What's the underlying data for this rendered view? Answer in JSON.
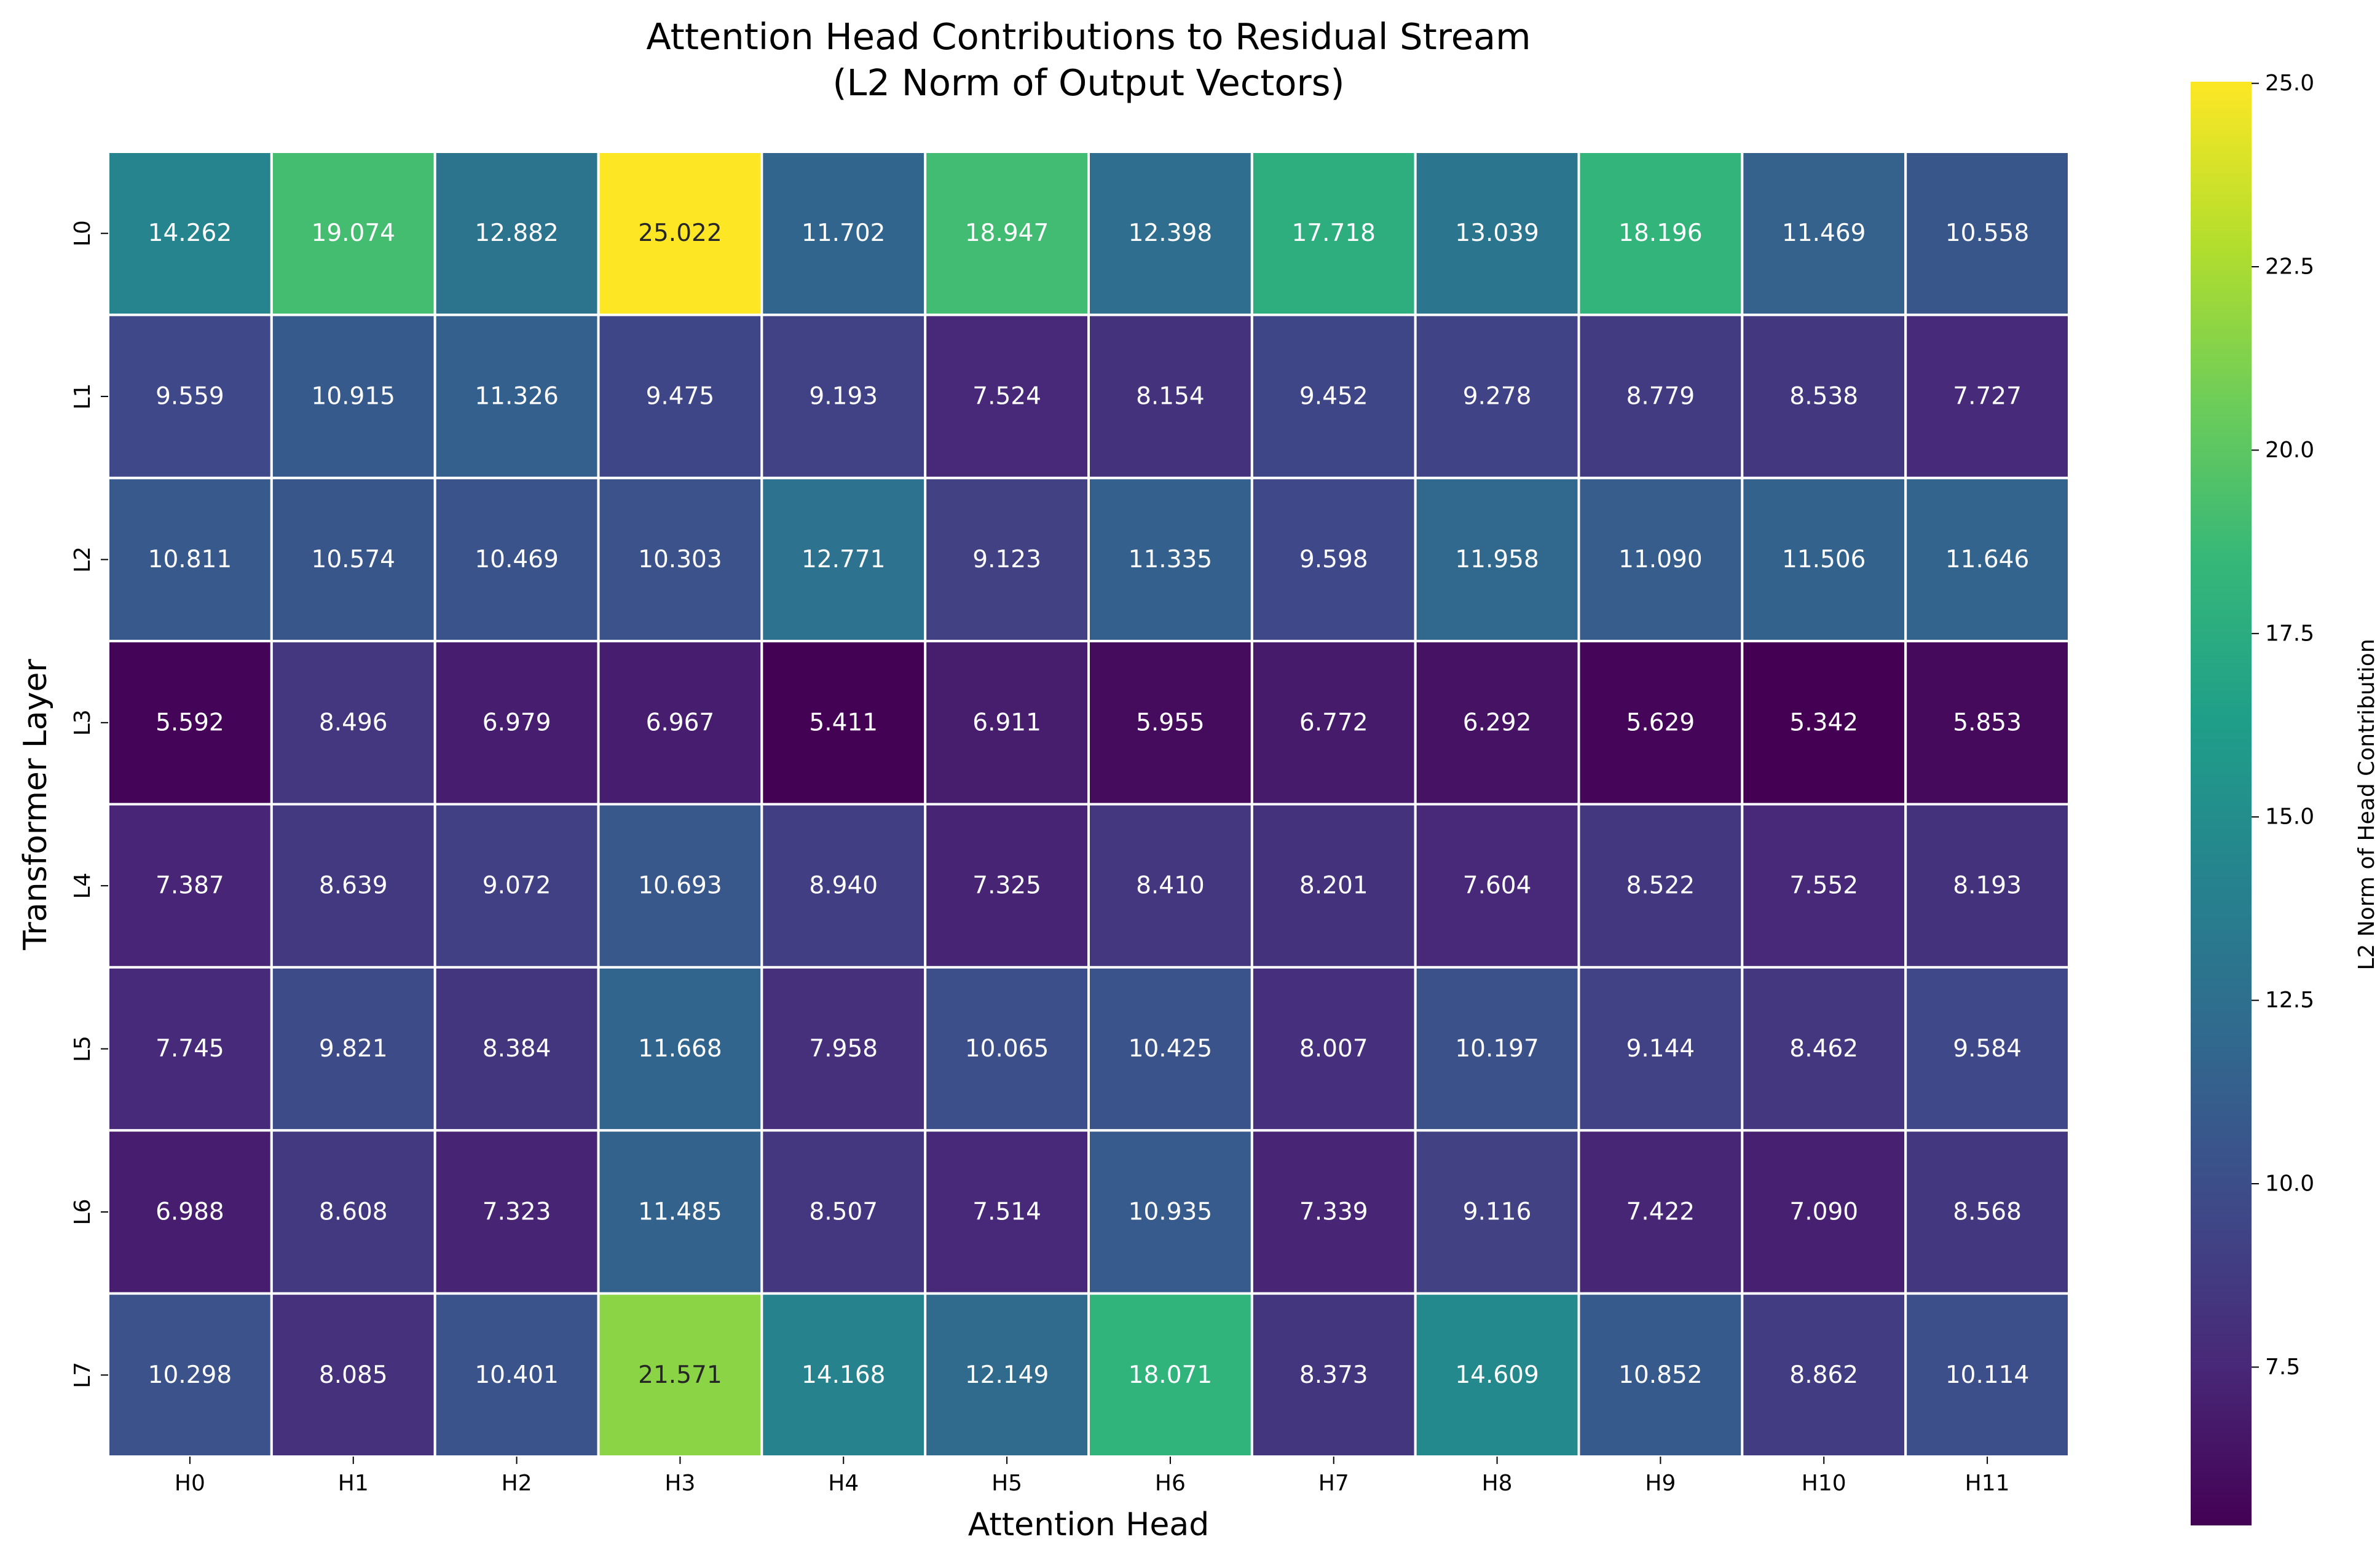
{
  "chart_data": {
    "type": "heatmap",
    "title": "Attention Head Contributions to Residual Stream",
    "subtitle": "(L2 Norm of Output Vectors)",
    "xlabel": "Attention Head",
    "ylabel": "Transformer Layer",
    "x_categories": [
      "H0",
      "H1",
      "H2",
      "H3",
      "H4",
      "H5",
      "H6",
      "H7",
      "H8",
      "H9",
      "H10",
      "H11"
    ],
    "y_categories": [
      "L0",
      "L1",
      "L2",
      "L3",
      "L4",
      "L5",
      "L6",
      "L7"
    ],
    "values": [
      [
        14.262,
        19.074,
        12.882,
        25.022,
        11.702,
        18.947,
        12.398,
        17.718,
        13.039,
        18.196,
        11.469,
        10.558
      ],
      [
        9.559,
        10.915,
        11.326,
        9.475,
        9.193,
        7.524,
        8.154,
        9.452,
        9.278,
        8.779,
        8.538,
        7.727
      ],
      [
        10.811,
        10.574,
        10.469,
        10.303,
        12.771,
        9.123,
        11.335,
        9.598,
        11.958,
        11.09,
        11.506,
        11.646
      ],
      [
        5.592,
        8.496,
        6.979,
        6.967,
        5.411,
        6.911,
        5.955,
        6.772,
        6.292,
        5.629,
        5.342,
        5.853
      ],
      [
        7.387,
        8.639,
        9.072,
        10.693,
        8.94,
        7.325,
        8.41,
        8.201,
        7.604,
        8.522,
        7.552,
        8.193
      ],
      [
        7.745,
        9.821,
        8.384,
        11.668,
        7.958,
        10.065,
        10.425,
        8.007,
        10.197,
        9.144,
        8.462,
        9.584
      ],
      [
        6.988,
        8.608,
        7.323,
        11.485,
        8.507,
        7.514,
        10.935,
        7.339,
        9.116,
        7.422,
        7.09,
        8.568
      ],
      [
        10.298,
        8.085,
        10.401,
        21.571,
        14.168,
        12.149,
        18.071,
        8.373,
        14.609,
        10.852,
        8.862,
        10.114
      ]
    ],
    "value_format": "3 decimals",
    "colormap": "viridis",
    "colorbar": {
      "label": "L2 Norm of Head Contribution",
      "min": 5.342,
      "max": 25.022,
      "ticks": [
        7.5,
        10.0,
        12.5,
        15.0,
        17.5,
        20.0,
        22.5,
        25.0
      ],
      "tick_labels": [
        "7.5",
        "10.0",
        "12.5",
        "15.0",
        "17.5",
        "20.0",
        "22.5",
        "25.0"
      ]
    },
    "cell_border_color": "#ffffff",
    "legend": "colorbar-right"
  }
}
